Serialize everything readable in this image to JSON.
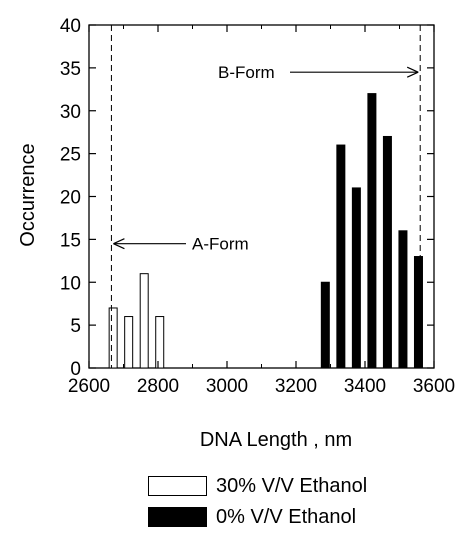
{
  "chart_data": {
    "type": "bar",
    "xlabel": "DNA Length , nm",
    "ylabel": "Occurrence",
    "xlim": [
      2600,
      3600
    ],
    "ylim": [
      0,
      40
    ],
    "x_ticks": [
      "2600",
      "2800",
      "3000",
      "3200",
      "3400",
      "3600"
    ],
    "y_ticks": [
      "0",
      "5",
      "10",
      "15",
      "20",
      "25",
      "30",
      "35",
      "40"
    ],
    "grid": false,
    "series": [
      {
        "name": "30% V/V Ethanol",
        "fill": "#ffffff",
        "x": [
          2670,
          2715,
          2760,
          2805
        ],
        "values": [
          7,
          6,
          11,
          6
        ]
      },
      {
        "name": "0% V/V Ethanol",
        "fill": "#000000",
        "x": [
          3285,
          3330,
          3375,
          3420,
          3465,
          3510,
          3555
        ],
        "values": [
          10,
          26,
          21,
          32,
          27,
          16,
          13
        ]
      }
    ],
    "reference_lines": [
      {
        "label": "A-Form",
        "x": 2665
      },
      {
        "label": "B-Form",
        "x": 3560
      }
    ],
    "annotations": [
      {
        "text": "A-Form",
        "x": 2665,
        "y": 14.5
      },
      {
        "text": "B-Form",
        "x": 3560,
        "y": 34.5
      }
    ]
  }
}
